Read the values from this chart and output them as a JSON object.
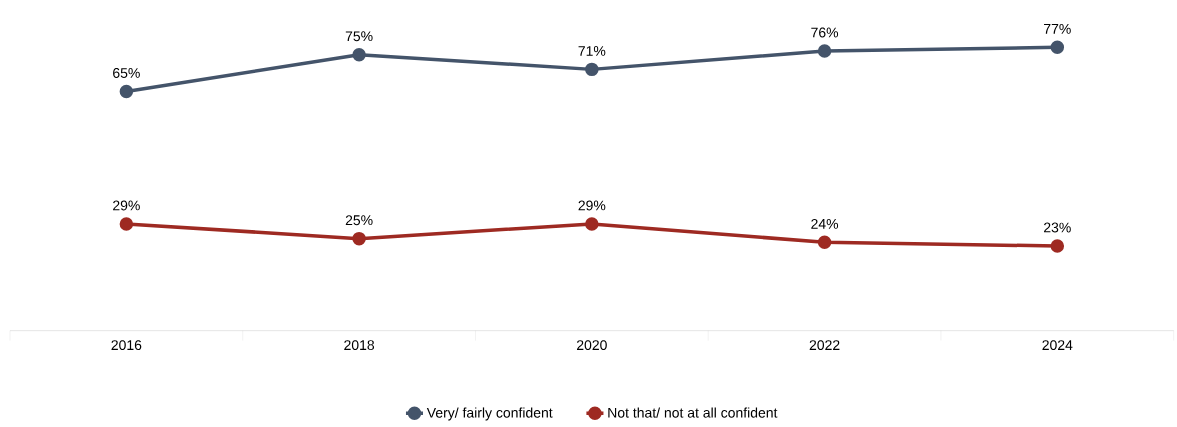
{
  "chart_data": {
    "type": "line",
    "categories": [
      "2016",
      "2018",
      "2020",
      "2022",
      "2024"
    ],
    "series": [
      {
        "name": "Very/ fairly confident",
        "color": "#44546a",
        "values": [
          65,
          75,
          71,
          76,
          77
        ],
        "value_labels": [
          "65%",
          "75%",
          "71%",
          "76%",
          "77%"
        ]
      },
      {
        "name": "Not that/ not at all confident",
        "color": "#9e2a22",
        "values": [
          29,
          25,
          29,
          24,
          23
        ],
        "value_labels": [
          "29%",
          "25%",
          "29%",
          "24%",
          "23%"
        ]
      }
    ],
    "tick_labels": "x",
    "grid": false,
    "legend": "bottom",
    "marker": "circle",
    "line_style": "solid"
  }
}
